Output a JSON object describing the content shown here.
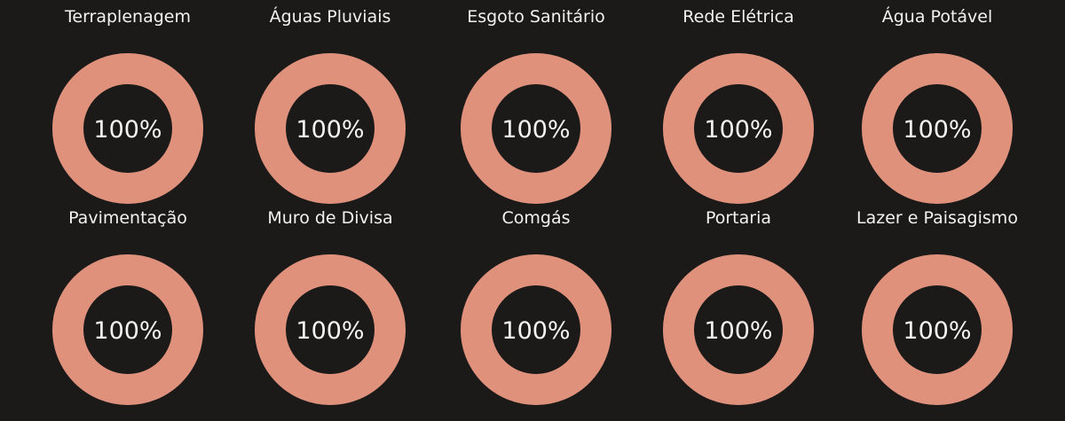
{
  "chart_data": {
    "type": "pie",
    "subtype": "donut",
    "color": "#e0917c",
    "background": "#1b1a19",
    "max": 100,
    "items": [
      {
        "title": "Terraplenagem",
        "value": 100,
        "label": "100%"
      },
      {
        "title": "Águas Pluviais",
        "value": 100,
        "label": "100%"
      },
      {
        "title": "Esgoto Sanitário",
        "value": 100,
        "label": "100%"
      },
      {
        "title": "Rede Elétrica",
        "value": 100,
        "label": "100%"
      },
      {
        "title": "Água Potável",
        "value": 100,
        "label": "100%"
      },
      {
        "title": "Pavimentação",
        "value": 100,
        "label": "100%"
      },
      {
        "title": "Muro de Divisa",
        "value": 100,
        "label": "100%"
      },
      {
        "title": "Comgás",
        "value": 100,
        "label": "100%"
      },
      {
        "title": "Portaria",
        "value": 100,
        "label": "100%"
      },
      {
        "title": "Lazer e Paisagismo",
        "value": 100,
        "label": "100%"
      }
    ]
  }
}
